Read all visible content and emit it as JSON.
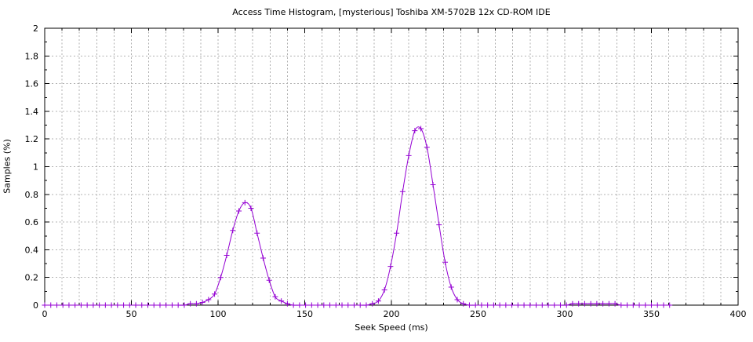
{
  "window": {
    "background_color": "#ffffff"
  },
  "chart_data": {
    "type": "line",
    "title": "Access Time Histogram, [mysterious] Toshiba XM-5702B 12x CD-ROM IDE",
    "xlabel": "Seek Speed (ms)",
    "ylabel": "Samples (%)",
    "xlim": [
      0,
      400
    ],
    "ylim": [
      0,
      2
    ],
    "x_major_ticks": [
      0,
      50,
      100,
      150,
      200,
      250,
      300,
      350,
      400
    ],
    "x_tick_labels": [
      "0",
      "50",
      "100",
      "150",
      "200",
      "250",
      "300",
      "350",
      "400"
    ],
    "x_grid_interval": 10,
    "y_major_ticks": [
      0,
      0.2,
      0.4,
      0.6,
      0.8,
      1,
      1.2,
      1.4,
      1.6,
      1.8,
      2
    ],
    "y_tick_labels": [
      "0",
      "0.2",
      "0.4",
      "0.6",
      "0.8",
      "1",
      "1.2",
      "1.4",
      "1.6",
      "1.8",
      "2"
    ],
    "y_minor_interval": 0.1,
    "grid": true,
    "legend": "none",
    "marker": "plus",
    "line_color": "#9400d3",
    "grid_color": "#b0b0b0",
    "border_color": "#000000",
    "x_step": 3.5,
    "points": [
      [
        0,
        0
      ],
      [
        3.5,
        0
      ],
      [
        7,
        0
      ],
      [
        10.5,
        0
      ],
      [
        14,
        0
      ],
      [
        17.5,
        0
      ],
      [
        21,
        0
      ],
      [
        24.5,
        0
      ],
      [
        28,
        0
      ],
      [
        31.5,
        0
      ],
      [
        35,
        0
      ],
      [
        38.5,
        0
      ],
      [
        42,
        0
      ],
      [
        45.5,
        0
      ],
      [
        49,
        0
      ],
      [
        52.5,
        0
      ],
      [
        56,
        0
      ],
      [
        59.5,
        0
      ],
      [
        63,
        0
      ],
      [
        66.5,
        0
      ],
      [
        70,
        0
      ],
      [
        73.5,
        0
      ],
      [
        77,
        0
      ],
      [
        80.5,
        0
      ],
      [
        84,
        0.01
      ],
      [
        87.5,
        0.01
      ],
      [
        91,
        0.02
      ],
      [
        94.5,
        0.04
      ],
      [
        98,
        0.08
      ],
      [
        101.5,
        0.2
      ],
      [
        105,
        0.36
      ],
      [
        108.5,
        0.54
      ],
      [
        112,
        0.68
      ],
      [
        115.5,
        0.74
      ],
      [
        119,
        0.7
      ],
      [
        122.5,
        0.52
      ],
      [
        126,
        0.34
      ],
      [
        129.5,
        0.18
      ],
      [
        133,
        0.06
      ],
      [
        136.5,
        0.03
      ],
      [
        140,
        0.01
      ],
      [
        143.5,
        0
      ],
      [
        147,
        0
      ],
      [
        150.5,
        0
      ],
      [
        154,
        0
      ],
      [
        157.5,
        0
      ],
      [
        161,
        0
      ],
      [
        164.5,
        0
      ],
      [
        168,
        0
      ],
      [
        171.5,
        0
      ],
      [
        175,
        0
      ],
      [
        178.5,
        0
      ],
      [
        182,
        0
      ],
      [
        185.5,
        0
      ],
      [
        189,
        0.01
      ],
      [
        192.5,
        0.03
      ],
      [
        196,
        0.11
      ],
      [
        199.5,
        0.28
      ],
      [
        203,
        0.52
      ],
      [
        206.5,
        0.82
      ],
      [
        210,
        1.08
      ],
      [
        213.5,
        1.26
      ],
      [
        217,
        1.275
      ],
      [
        220.5,
        1.14
      ],
      [
        224,
        0.87
      ],
      [
        227.5,
        0.58
      ],
      [
        231,
        0.31
      ],
      [
        234.5,
        0.13
      ],
      [
        238,
        0.04
      ],
      [
        241.5,
        0.01
      ],
      [
        245,
        0
      ],
      [
        248.5,
        0
      ],
      [
        252,
        0
      ],
      [
        255.5,
        0
      ],
      [
        259,
        0
      ],
      [
        262.5,
        0
      ],
      [
        266,
        0
      ],
      [
        269.5,
        0
      ],
      [
        273,
        0
      ],
      [
        276.5,
        0
      ],
      [
        280,
        0
      ],
      [
        283.5,
        0
      ],
      [
        287,
        0
      ],
      [
        290.5,
        0
      ],
      [
        294,
        0
      ],
      [
        297.5,
        0
      ],
      [
        301,
        0
      ],
      [
        304.5,
        0.01
      ],
      [
        308,
        0.01
      ],
      [
        311.5,
        0.01
      ],
      [
        315,
        0.01
      ],
      [
        318.5,
        0.01
      ],
      [
        322,
        0.01
      ],
      [
        325.5,
        0.01
      ],
      [
        329,
        0.01
      ],
      [
        332.5,
        0
      ],
      [
        336,
        0
      ],
      [
        339.5,
        0
      ],
      [
        343,
        0
      ],
      [
        346.5,
        0
      ],
      [
        350,
        0
      ],
      [
        353.5,
        0
      ],
      [
        357,
        0
      ],
      [
        360.5,
        0
      ]
    ]
  }
}
